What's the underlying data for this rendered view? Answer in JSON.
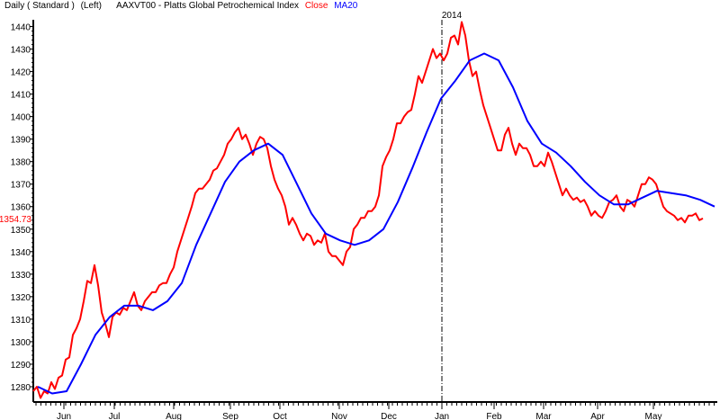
{
  "header": {
    "mode": "Daily ( Standard )",
    "axis_side": "(Left)",
    "instrument": "AAXVT00 - Platts Global Petrochemical Index",
    "legend_close": "Close",
    "legend_ma": "MA20"
  },
  "colors": {
    "close": "#ff0000",
    "ma20": "#0000ff",
    "axis": "#000000",
    "last_label": "#ff0000"
  },
  "chart_data": {
    "type": "line",
    "title": "AAXVT00 - Platts Global Petrochemical Index",
    "xlabel": "",
    "ylabel": "",
    "xlim": [
      0,
      190
    ],
    "ylim": [
      1273.2,
      1443
    ],
    "yticks": [
      1280,
      1290,
      1300,
      1310,
      1320,
      1330,
      1340,
      1350,
      1360,
      1370,
      1380,
      1390,
      1400,
      1410,
      1420,
      1430,
      1440
    ],
    "xticks": [
      {
        "label": "Jun",
        "x": 8.5
      },
      {
        "label": "Jul",
        "x": 22.5
      },
      {
        "label": "Aug",
        "x": 39
      },
      {
        "label": "Sep",
        "x": 54.75
      },
      {
        "label": "Oct",
        "x": 68.5
      },
      {
        "label": "Nov",
        "x": 85
      },
      {
        "label": "Dec",
        "x": 98.75
      },
      {
        "label": "Jan",
        "x": 113.5
      },
      {
        "label": "Feb",
        "x": 128
      },
      {
        "label": "Mar",
        "x": 141.75
      },
      {
        "label": "Apr",
        "x": 156.75
      },
      {
        "label": "May",
        "x": 172.25
      }
    ],
    "year_marker": {
      "label": "2014",
      "x": 113.5
    },
    "last_value": {
      "label": "1354.73",
      "value": 1354.73
    },
    "grid": false,
    "series": [
      {
        "name": "Close",
        "x_start": 0,
        "x_step": 1,
        "values": [
          1278,
          1280,
          1275,
          1278,
          1277,
          1282,
          1279,
          1284,
          1285,
          1292,
          1293,
          1303,
          1306,
          1310,
          1318,
          1327,
          1326,
          1334,
          1325,
          1313,
          1308,
          1302,
          1311,
          1313,
          1312,
          1315,
          1314,
          1318,
          1322,
          1316,
          1314,
          1318,
          1320,
          1322,
          1322,
          1325,
          1326,
          1326,
          1330,
          1333,
          1340,
          1345,
          1350,
          1355,
          1360,
          1366,
          1368,
          1368,
          1370,
          1372,
          1376,
          1377,
          1380,
          1383,
          1388,
          1390,
          1393,
          1395,
          1390,
          1392,
          1388,
          1383,
          1388,
          1391,
          1390,
          1386,
          1378,
          1372,
          1368,
          1365,
          1360,
          1352,
          1355,
          1352,
          1348,
          1345,
          1348,
          1347,
          1343,
          1345,
          1344,
          1348,
          1340,
          1338,
          1338,
          1336,
          1334,
          1340,
          1342,
          1350,
          1352,
          1355,
          1355,
          1358,
          1358,
          1360,
          1365,
          1378,
          1382,
          1385,
          1390,
          1397,
          1397,
          1400,
          1402,
          1403,
          1410,
          1418,
          1415,
          1420,
          1425,
          1430,
          1426,
          1428,
          1425,
          1428,
          1435,
          1436,
          1432,
          1442,
          1436,
          1425,
          1418,
          1420,
          1412,
          1405,
          1400,
          1395,
          1390,
          1385,
          1385,
          1392,
          1395,
          1388,
          1383,
          1388,
          1386,
          1386,
          1383,
          1378,
          1378,
          1380,
          1378,
          1384,
          1380,
          1375,
          1370,
          1365,
          1368,
          1365,
          1363,
          1364,
          1362,
          1363,
          1360,
          1356,
          1358,
          1356,
          1355,
          1358,
          1362,
          1363,
          1365,
          1360,
          1358,
          1363,
          1362,
          1360,
          1365,
          1370,
          1370,
          1373,
          1372,
          1370,
          1365,
          1360,
          1358,
          1357,
          1356,
          1354,
          1355,
          1353,
          1356,
          1356,
          1357,
          1354,
          1354.73
        ]
      },
      {
        "name": "MA20",
        "x_start": 1.25,
        "x_step": 4,
        "values": [
          1280,
          1277,
          1278,
          1290,
          1303,
          1311,
          1316,
          1316,
          1314,
          1318,
          1326,
          1343,
          1357,
          1371,
          1380,
          1385,
          1388,
          1383,
          1370,
          1357,
          1348,
          1345,
          1343,
          1345,
          1350,
          1362,
          1377,
          1393,
          1408,
          1416,
          1425,
          1428,
          1425,
          1413,
          1398,
          1388,
          1384,
          1378,
          1371,
          1365,
          1361,
          1361,
          1364,
          1367,
          1366,
          1365,
          1363,
          1360
        ]
      }
    ]
  }
}
